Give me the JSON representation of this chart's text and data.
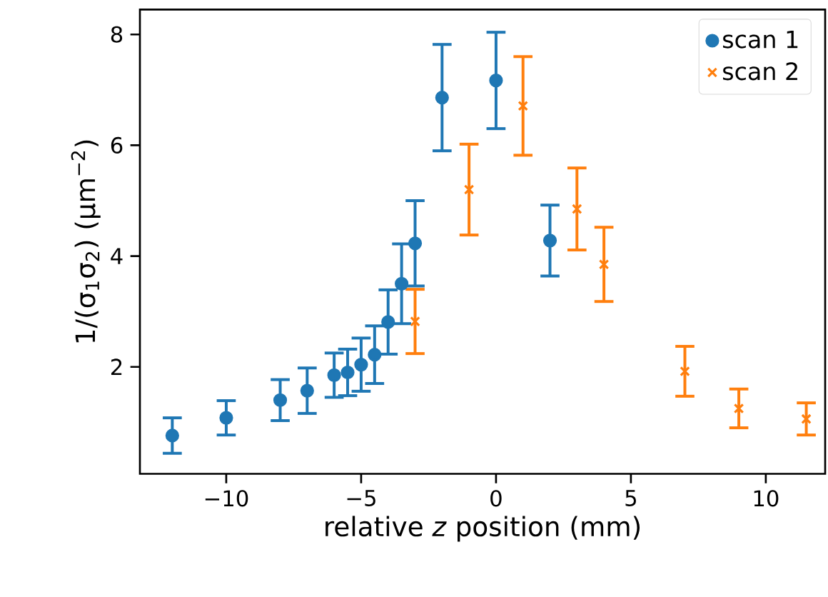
{
  "chart_data": {
    "type": "scatter",
    "xlabel": "relative *z* position (mm)",
    "ylabel": "1/(σ$_{1}$σ$_{2}$) (μm$^{−2}$)",
    "xlim": [
      -13.2,
      12.2
    ],
    "ylim": [
      0.07,
      8.45
    ],
    "xticks": [
      {
        "value": -10,
        "label": "−10"
      },
      {
        "value": -5,
        "label": "−5"
      },
      0,
      5,
      10
    ],
    "yticks": [
      2,
      4,
      6,
      8
    ],
    "legend": "top right",
    "grid": false,
    "series": [
      {
        "name": "scan 1",
        "color": "#1f77b4",
        "marker": "circle",
        "x": [
          -12,
          -10,
          -8,
          -7,
          -6,
          -5.5,
          -5,
          -4.5,
          -4,
          -3.5,
          -3,
          -2,
          0,
          2
        ],
        "values": [
          0.76,
          1.08,
          1.4,
          1.57,
          1.85,
          1.9,
          2.04,
          2.22,
          2.81,
          3.5,
          4.23,
          6.86,
          7.17,
          4.28
        ],
        "errors": [
          0.32,
          0.31,
          0.37,
          0.41,
          0.4,
          0.42,
          0.48,
          0.52,
          0.58,
          0.72,
          0.77,
          0.96,
          0.87,
          0.64
        ]
      },
      {
        "name": "scan 2",
        "color": "#ff7f0e",
        "marker": "cross",
        "x": [
          -3,
          -1,
          1,
          3,
          4,
          7,
          9,
          11.5
        ],
        "values": [
          2.82,
          5.2,
          6.71,
          4.85,
          3.85,
          1.92,
          1.25,
          1.06
        ],
        "errors": [
          0.58,
          0.82,
          0.89,
          0.74,
          0.67,
          0.45,
          0.35,
          0.29
        ]
      }
    ]
  }
}
